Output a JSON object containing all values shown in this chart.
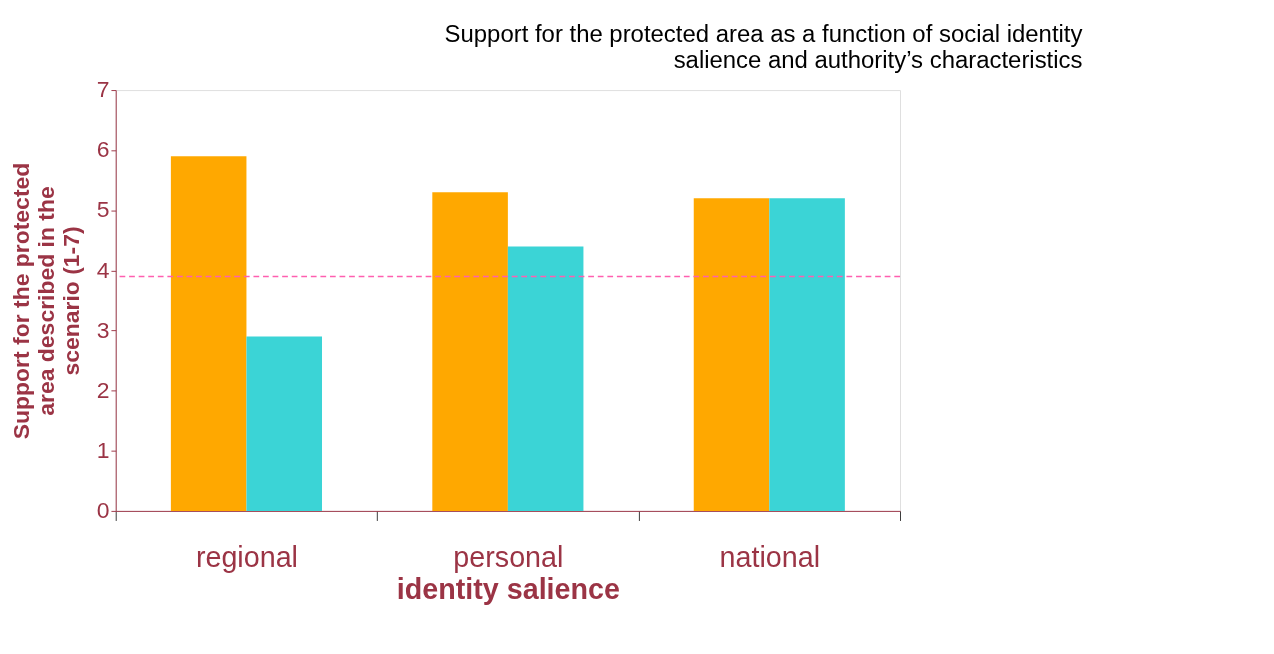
{
  "chart_data": {
    "type": "bar",
    "title": "Support for the protected area as a function of social identity salience and authority’s characteristics",
    "xlabel": "identity salience",
    "ylabel": "Support for the protected area described in the scenario (1-7)",
    "categories": [
      "regional",
      "personal",
      "national"
    ],
    "series": [
      {
        "color": "#ffa800",
        "values": [
          5.9,
          5.3,
          5.2
        ]
      },
      {
        "color": "#3bd4d6",
        "values": [
          2.9,
          4.4,
          5.2
        ]
      }
    ],
    "ylim": [
      0,
      7
    ],
    "yticks": [
      0,
      1,
      2,
      3,
      4,
      5,
      6,
      7
    ],
    "grid": false,
    "ref_lines": [
      {
        "axis": "y",
        "value": 3.9,
        "color": "#ff5fb0",
        "line_style": "dashed"
      }
    ]
  }
}
